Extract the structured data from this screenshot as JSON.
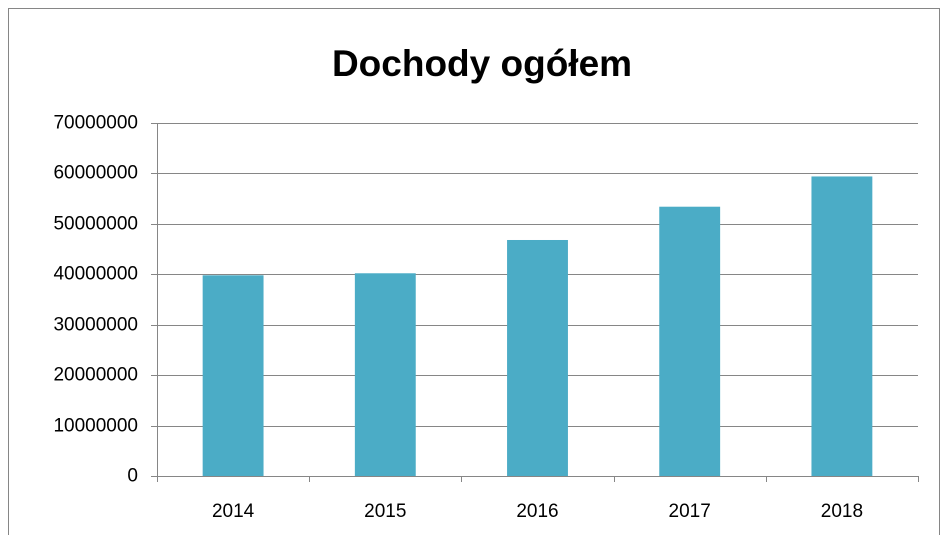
{
  "chart_data": {
    "type": "bar",
    "title": "Dochody ogółem",
    "categories": [
      "2014",
      "2015",
      "2016",
      "2017",
      "2018"
    ],
    "values": [
      39800000,
      40200000,
      46800000,
      53400000,
      59400000
    ],
    "color": "#4bacc6",
    "ylim": [
      0,
      70000000
    ],
    "yticks": [
      0,
      10000000,
      20000000,
      30000000,
      40000000,
      50000000,
      60000000,
      70000000
    ],
    "grid": true
  }
}
